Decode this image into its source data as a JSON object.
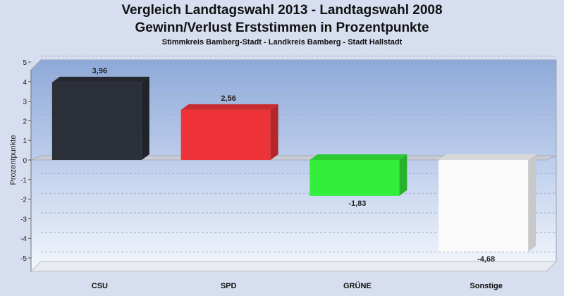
{
  "header": {
    "title_line1": "Vergleich Landtagswahl 2013 - Landtagswahl 2008",
    "title_line2": "Gewinn/Verlust Erststimmen in Prozentpunkte",
    "subtitle": "Stimmkreis Bamberg-Stadt - Landkreis Bamberg - Stadt Hallstadt"
  },
  "chart_data": {
    "type": "bar",
    "title": "Vergleich Landtagswahl 2013 - Landtagswahl 2008 / Gewinn/Verlust Erststimmen in Prozentpunkte",
    "subtitle": "Stimmkreis Bamberg-Stadt - Landkreis Bamberg - Stadt Hallstadt",
    "xlabel": "",
    "ylabel": "Prozentpunkte",
    "ylim": [
      -5,
      5
    ],
    "yticks": [
      "5",
      "4",
      "3",
      "2",
      "1",
      "0",
      "-1",
      "-2",
      "-3",
      "-4",
      "-5"
    ],
    "categories": [
      "CSU",
      "SPD",
      "GRÜNE",
      "Sonstige"
    ],
    "values": [
      3.96,
      2.56,
      -1.83,
      -4.68
    ],
    "value_labels": [
      "3,96",
      "2,56",
      "-1,83",
      "-4,68"
    ],
    "colors": [
      "#2b2f38",
      "#ee3338",
      "#33ee3b",
      "#fafafa"
    ],
    "grid": true,
    "legend": "none"
  }
}
